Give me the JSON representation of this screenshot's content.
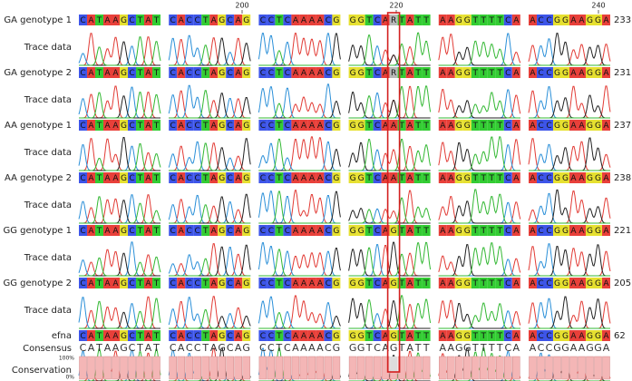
{
  "ruler": [
    {
      "value": 200,
      "label": "200"
    },
    {
      "value": 220,
      "label": "220"
    },
    {
      "value": 240,
      "label": "240"
    }
  ],
  "trace_label": "Trace data",
  "rows": [
    {
      "name": "GA genotype 1",
      "blocks": [
        "CATAAGCTAT",
        "CACCTAGCAG",
        "CCTCAAAACG",
        "GGTCARTATT",
        "AAGGTTTTCA",
        "ACCGGAAGGA"
      ],
      "count": 233
    },
    {
      "name": "GA genotype 2",
      "blocks": [
        "CATAAGCTAT",
        "CACCTAGCAG",
        "CCTCAAAACG",
        "GGTCARTATT",
        "AAGGTTTTCA",
        "ACCGGAAGGA"
      ],
      "count": 231
    },
    {
      "name": "AA genotype 1",
      "blocks": [
        "CATAAGCTAT",
        "CACCTAGCAG",
        "CCTCAAAACG",
        "GGTCAATATT",
        "AAGGTTTTCA",
        "ACCGGAAGGA"
      ],
      "count": 237
    },
    {
      "name": "AA genotype 2",
      "blocks": [
        "CATAAGCTAT",
        "CACCTAGCAG",
        "CCTCAAAACG",
        "GGTCAATATT",
        "AAGGTTTTCA",
        "ACCGGAAGGA"
      ],
      "count": 238
    },
    {
      "name": "GG genotype 1",
      "blocks": [
        "CATAAGCTAT",
        "CACCTAGCAG",
        "CCTCAAAACG",
        "GGTCAGTATT",
        "AAGGTTTTCA",
        "ACCGGAAGGA"
      ],
      "count": 221
    },
    {
      "name": "GG genotype 2",
      "blocks": [
        "CATAAGCTAT",
        "CACCTAGCAG",
        "CCTCAAAACG",
        "GGTCAGTATT",
        "AAGGTTTTCA",
        "ACCGGAAGGA"
      ],
      "count": 205
    },
    {
      "name": "efna",
      "blocks": [
        "CATAAGCTAT",
        "CACCTAGCAG",
        "CCTCAAAACG",
        "GGTCAGTATT",
        "AAGGTTTTCA",
        "ACCGGAAGGA"
      ],
      "count": 62
    }
  ],
  "consensus": {
    "name": "Consensus",
    "blocks": [
      "CATAAGCTAT",
      "CACCTAGCAG",
      "CCTCAAAACG",
      "GGTCAGTATT",
      "AAGGTTTTCA",
      "ACCGGAAGGA"
    ]
  },
  "conservation": {
    "name": "Conservation",
    "max_label": "100%",
    "min_label": "0%",
    "blocks": [
      [
        100,
        100,
        100,
        100,
        100,
        100,
        100,
        100,
        100,
        100
      ],
      [
        100,
        100,
        100,
        100,
        100,
        100,
        100,
        100,
        100,
        100
      ],
      [
        100,
        100,
        100,
        100,
        100,
        100,
        100,
        100,
        100,
        100
      ],
      [
        100,
        100,
        100,
        100,
        100,
        30,
        100,
        100,
        100,
        100
      ],
      [
        100,
        100,
        100,
        100,
        100,
        100,
        100,
        100,
        100,
        100
      ],
      [
        100,
        100,
        100,
        100,
        100,
        100,
        100,
        100,
        100,
        100
      ]
    ]
  }
}
